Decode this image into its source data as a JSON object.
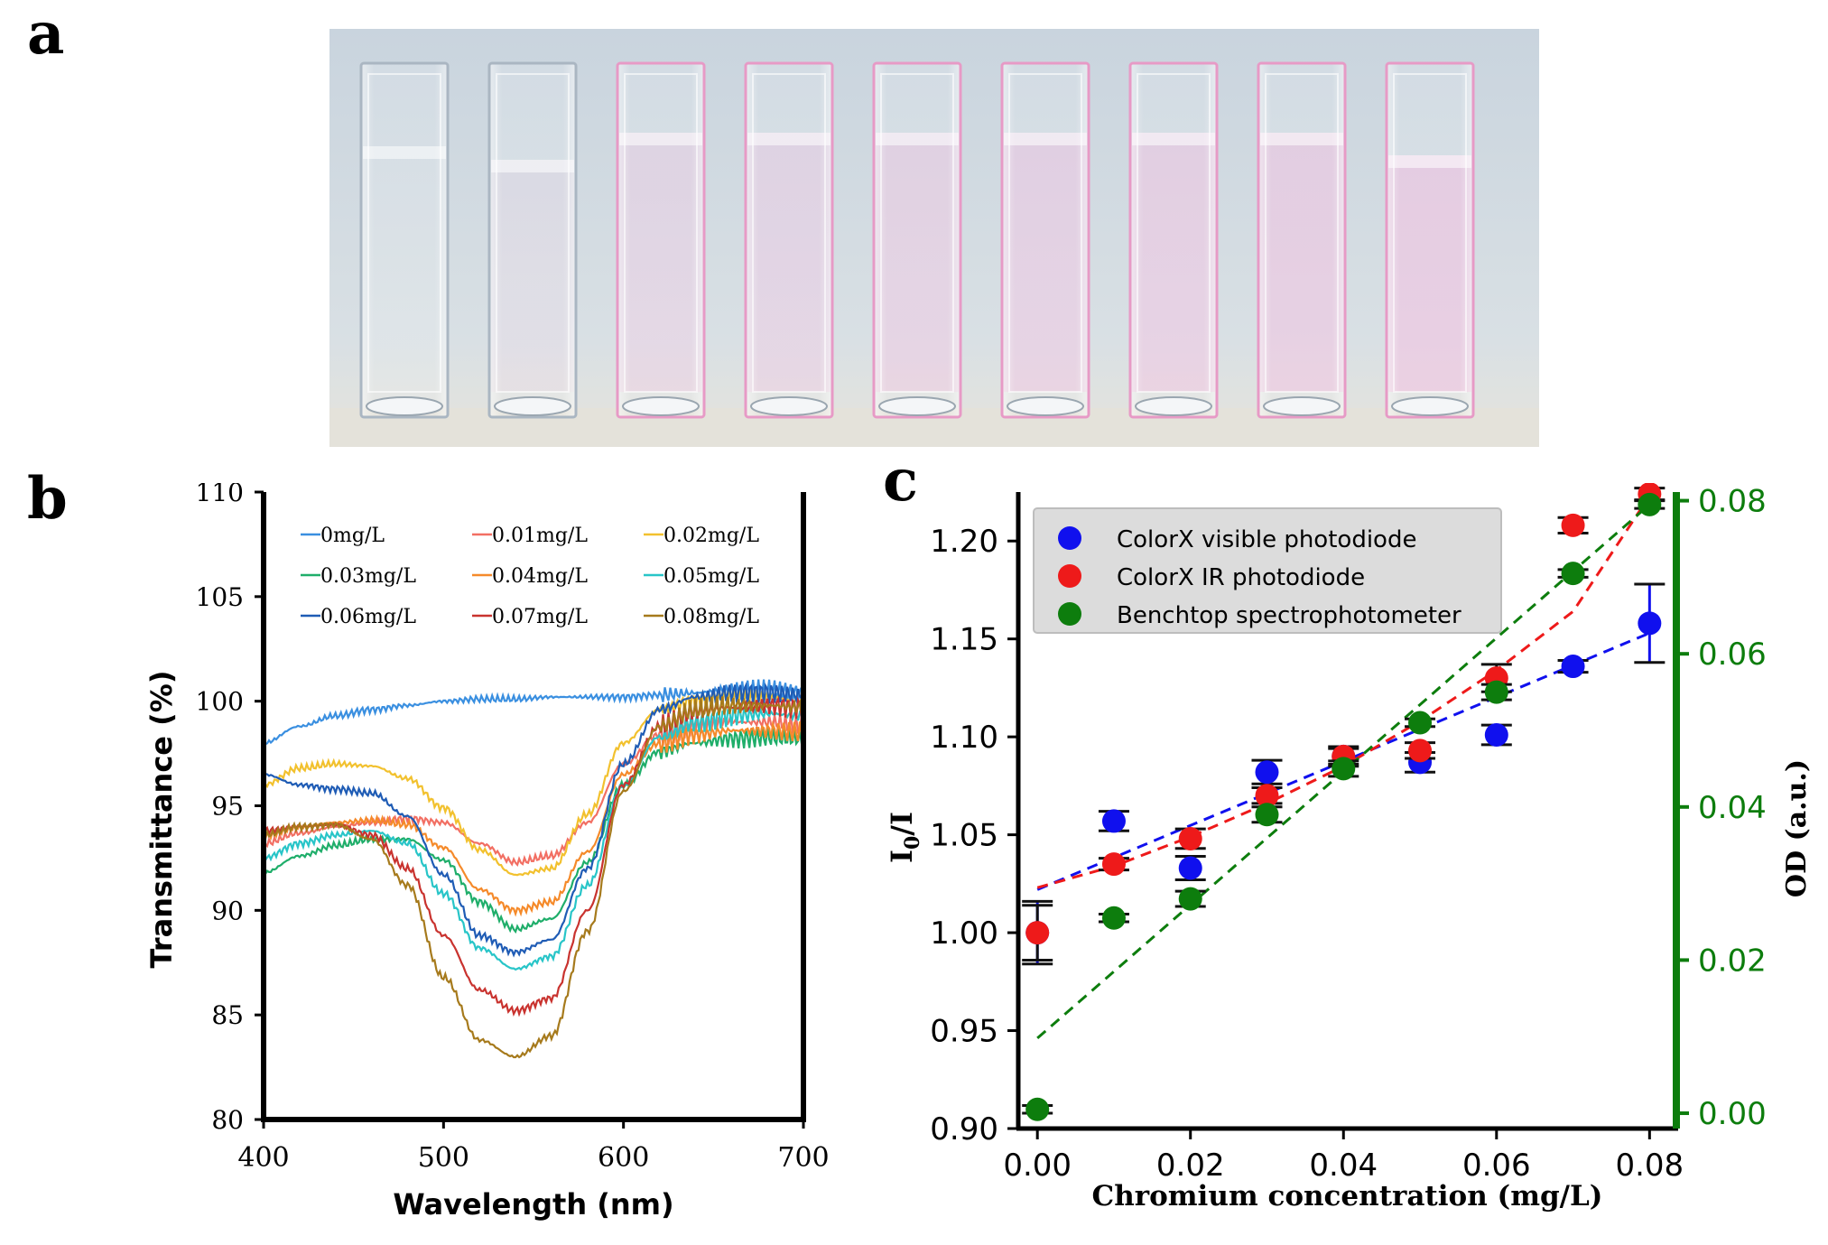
{
  "panels": {
    "a": "a",
    "b": "b",
    "c": "c"
  },
  "photo": {
    "cuvette_count": 9
  },
  "chart_data": [
    {
      "type": "line",
      "panel": "b",
      "xlabel": "Wavelength (nm)",
      "ylabel": "Transmittance (%)",
      "xlim": [
        400,
        700
      ],
      "ylim": [
        80,
        110
      ],
      "xticks": [
        400,
        500,
        600,
        700
      ],
      "yticks": [
        80,
        85,
        90,
        95,
        100,
        105,
        110
      ],
      "legend_position": "top",
      "x": [
        400,
        420,
        440,
        460,
        480,
        500,
        520,
        540,
        560,
        580,
        600,
        620,
        640,
        660,
        680,
        700
      ],
      "series": [
        {
          "name": "0mg/L",
          "color": "#3a8fe0",
          "values": [
            98.0,
            98.8,
            99.3,
            99.6,
            99.8,
            100.0,
            100.1,
            100.1,
            100.2,
            100.2,
            100.2,
            100.3,
            100.4,
            100.5,
            100.5,
            100.4
          ]
        },
        {
          "name": "0.01mg/L",
          "color": "#f26f63",
          "values": [
            93.2,
            93.7,
            94.0,
            94.2,
            94.4,
            94.2,
            93.2,
            92.3,
            92.6,
            94.2,
            97.0,
            98.4,
            98.8,
            99.0,
            99.0,
            98.8
          ]
        },
        {
          "name": "0.02mg/L",
          "color": "#f2c12e",
          "values": [
            96.0,
            96.8,
            97.0,
            96.9,
            96.3,
            94.9,
            92.9,
            91.7,
            92.0,
            94.6,
            98.0,
            99.6,
            100.0,
            100.2,
            100.2,
            100.0
          ]
        },
        {
          "name": "0.03mg/L",
          "color": "#1fae6a",
          "values": [
            91.8,
            92.6,
            93.1,
            93.4,
            93.4,
            92.4,
            90.4,
            89.1,
            89.6,
            92.3,
            96.0,
            97.6,
            98.0,
            98.2,
            98.3,
            98.2
          ]
        },
        {
          "name": "0.04mg/L",
          "color": "#f58a2a",
          "values": [
            93.6,
            94.0,
            94.2,
            94.3,
            94.1,
            93.0,
            91.0,
            90.0,
            90.4,
            92.8,
            96.5,
            98.0,
            98.4,
            98.6,
            98.6,
            98.5
          ]
        },
        {
          "name": "0.05mg/L",
          "color": "#28c5c8",
          "values": [
            92.5,
            93.2,
            93.6,
            93.8,
            93.2,
            90.8,
            88.2,
            87.2,
            87.8,
            91.2,
            96.0,
            98.3,
            99.0,
            99.3,
            99.4,
            99.3
          ]
        },
        {
          "name": "0.06mg/L",
          "color": "#1f5cb5",
          "values": [
            96.5,
            96.0,
            95.8,
            95.6,
            94.5,
            91.7,
            88.8,
            88.0,
            88.6,
            92.0,
            97.0,
            99.6,
            100.2,
            100.4,
            100.4,
            100.3
          ]
        },
        {
          "name": "0.07mg/L",
          "color": "#c9332f",
          "values": [
            93.8,
            94.0,
            94.1,
            93.6,
            92.0,
            88.8,
            86.2,
            85.2,
            85.8,
            90.0,
            96.0,
            98.8,
            99.5,
            99.7,
            99.8,
            99.7
          ]
        },
        {
          "name": "0.08mg/L",
          "color": "#a67a1c",
          "values": [
            93.6,
            94.0,
            94.1,
            93.4,
            91.2,
            86.8,
            83.8,
            83.0,
            84.0,
            89.0,
            95.7,
            98.8,
            99.6,
            99.8,
            99.8,
            99.7
          ]
        }
      ]
    },
    {
      "type": "scatter",
      "panel": "c",
      "xlabel": "Chromium concentration (mg/L)",
      "ylabel": "I0/I",
      "ylabel_main": "I",
      "ylabel_sub": "0",
      "ylabel_tail": "/I",
      "y2label": "OD (a.u.)",
      "xlim": [
        -0.0025,
        0.0835
      ],
      "ylim": [
        0.9,
        1.225
      ],
      "y2lim": [
        -0.002,
        0.08113
      ],
      "xticks": [
        "0.00",
        "0.02",
        "0.04",
        "0.06",
        "0.08"
      ],
      "yticks": [
        "0.90",
        "0.95",
        "1.00",
        "1.05",
        "1.10",
        "1.15",
        "1.20"
      ],
      "y2ticks": [
        "0.00",
        "0.02",
        "0.04",
        "0.06",
        "0.08"
      ],
      "legend_position": "top-left",
      "x": [
        0.0,
        0.01,
        0.02,
        0.03,
        0.04,
        0.05,
        0.06,
        0.07,
        0.08
      ],
      "series": [
        {
          "name": "ColorX visible photodiode",
          "color": "#1010ee",
          "axis": "left",
          "values": [
            1.0,
            1.057,
            1.033,
            1.082,
            1.09,
            1.087,
            1.101,
            1.136,
            1.158
          ],
          "errors": [
            0.016,
            0.005,
            0.006,
            0.006,
            0.005,
            0.005,
            0.005,
            0.003,
            0.02
          ],
          "fit": [
            1.022,
            1.153
          ]
        },
        {
          "name": "ColorX IR photodiode",
          "color": "#ee1a1a",
          "axis": "left",
          "values": [
            1.0,
            1.035,
            1.048,
            1.07,
            1.09,
            1.093,
            1.13,
            1.208,
            1.224
          ],
          "errors": [
            0.014,
            0.003,
            0.005,
            0.004,
            0.004,
            0.004,
            0.007,
            0.004,
            0.003
          ],
          "fit_curve": [
            1.023,
            1.034,
            1.049,
            1.066,
            1.085,
            1.108,
            1.134,
            1.164,
            1.223
          ]
        },
        {
          "name": "Benchtop spectrophotometer",
          "color": "#0d7d0d",
          "axis": "right",
          "values": [
            0.0005,
            0.0255,
            0.028,
            0.039,
            0.045,
            0.051,
            0.055,
            0.0705,
            0.0795
          ],
          "errors": [
            0.0005,
            0.0005,
            0.001,
            0.001,
            0.001,
            0.0005,
            0.001,
            0.0005,
            0.0005
          ],
          "fit": [
            0.0098,
            0.0795
          ]
        }
      ]
    }
  ]
}
